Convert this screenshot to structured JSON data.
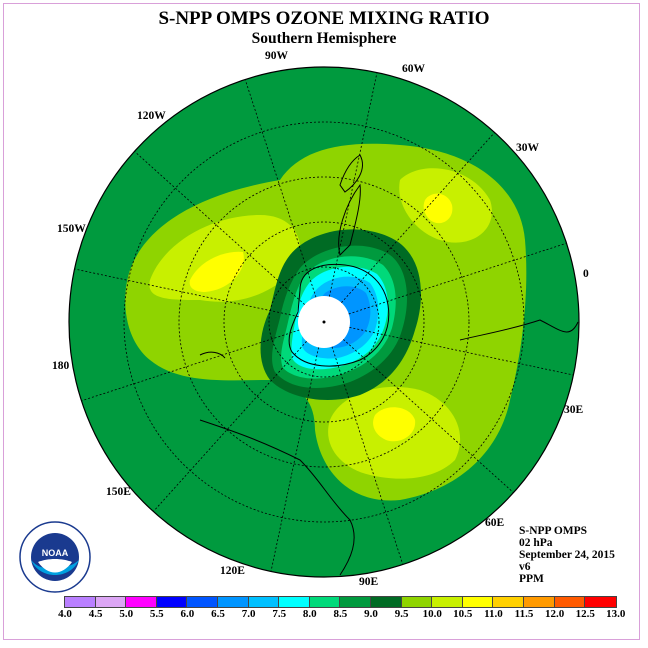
{
  "title": "S-NPP OMPS OZONE MIXING RATIO",
  "subtitle": "Southern Hemisphere",
  "longitude_labels": [
    "90W",
    "60W",
    "30W",
    "0",
    "30E",
    "60E",
    "90E",
    "120E",
    "150E",
    "180",
    "150W",
    "120W"
  ],
  "info": {
    "instrument": "S-NPP OMPS",
    "pressure": "02 hPa",
    "date": "September 24, 2015",
    "version": "v6",
    "units": "PPM"
  },
  "logo": {
    "text": "NOAA",
    "ring_text": "NATIONAL OCEANIC AND ATMOSPHERIC ADMINISTRATION",
    "bottom_text": "U.S. DEPARTMENT OF COMMERCE"
  },
  "colorbar": {
    "ticks": [
      "4.0",
      "4.5",
      "5.0",
      "5.5",
      "6.0",
      "6.5",
      "7.0",
      "7.5",
      "8.0",
      "8.5",
      "9.0",
      "9.5",
      "10.0",
      "10.5",
      "11.0",
      "11.5",
      "12.0",
      "12.5",
      "13.0"
    ],
    "colors": [
      "#b97fff",
      "#dca6f5",
      "#ff00ff",
      "#0000ff",
      "#0055ff",
      "#0095ff",
      "#00c0ff",
      "#00ffff",
      "#00d97a",
      "#009a3e",
      "#006b24",
      "#8fd400",
      "#c8f000",
      "#ffff00",
      "#ffd000",
      "#ff9a00",
      "#ff5a00",
      "#ff0000",
      "#a0522d"
    ]
  },
  "field_colors": {
    "outer": "#006b24",
    "band_a": "#009a3e",
    "band_b": "#8fd400",
    "band_c": "#c8f000",
    "max": "#ffff00",
    "low_a": "#00d97a",
    "low_b": "#00ffff",
    "low_c": "#00c0ff",
    "low_d": "#0095ff"
  }
}
